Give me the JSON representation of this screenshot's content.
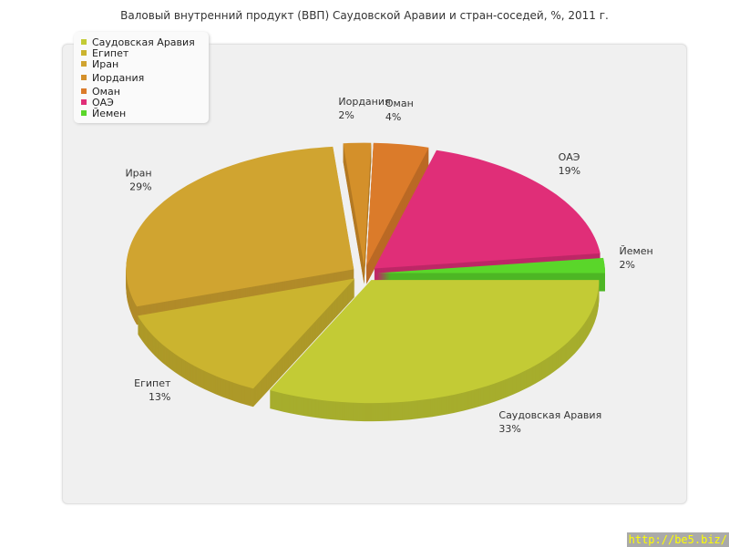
{
  "chart_data": {
    "type": "pie",
    "title": "Валовый внутренний продукт (ВВП) Саудовской Аравии и стран-соседей, %, 2011 г.",
    "categories": [
      "Саудовская Аравия",
      "Египет",
      "Иран",
      "Иордания",
      "Оман",
      "ОАЭ",
      "Йемен"
    ],
    "values": [
      33,
      13,
      29,
      2,
      4,
      19,
      2
    ],
    "labels": [
      "33%",
      "13%",
      "29%",
      "2%",
      "4%",
      "19%",
      "2%"
    ],
    "colors": [
      "#c3cb35",
      "#cbb42f",
      "#d0a430",
      "#d4902a",
      "#db7b2a",
      "#e02e78",
      "#5ad62a"
    ],
    "style": "3d-exploded",
    "legend": "top-left"
  },
  "watermark": "http://be5.biz/"
}
